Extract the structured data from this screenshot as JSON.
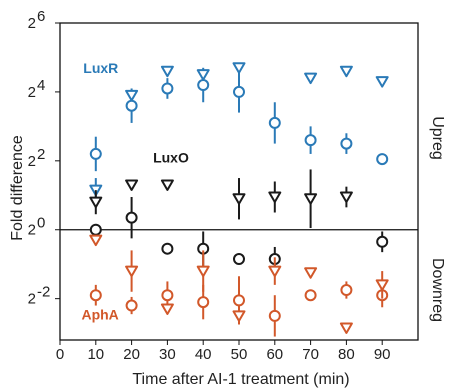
{
  "chart_data": {
    "type": "scatter",
    "xlabel": "Time after AI-1 treatment (min)",
    "ylabel": "Fold difference",
    "xlim": [
      0,
      100
    ],
    "ylim": [
      -3.2,
      6
    ],
    "log_base": 2,
    "x_ticks": [
      "0",
      "10",
      "20",
      "30",
      "40",
      "50",
      "60",
      "70",
      "80",
      "90"
    ],
    "y_tick_values": [
      6,
      4,
      2,
      0,
      -2
    ],
    "y_tick_base": "2",
    "y_tick_exponents": [
      "6",
      "4",
      "2",
      "0",
      "-2"
    ],
    "reference_line": 0,
    "region_labels": {
      "upper": "Upreg",
      "lower": "Downreg"
    },
    "series": [
      {
        "name": "LuxR",
        "color": "#2a7ab7",
        "circles": [
          [
            10,
            2.2,
            0.5
          ],
          [
            20,
            3.6,
            0.5
          ],
          [
            30,
            4.1,
            0.3
          ],
          [
            40,
            4.2,
            0.5
          ],
          [
            50,
            4.0,
            0.6
          ],
          [
            60,
            3.1,
            0.6
          ],
          [
            70,
            2.6,
            0.4
          ],
          [
            80,
            2.5,
            0.3
          ],
          [
            90,
            2.05,
            0
          ]
        ],
        "triangles": [
          [
            10,
            1.15,
            0.35
          ],
          [
            20,
            3.9,
            0
          ],
          [
            30,
            4.6,
            0
          ],
          [
            40,
            4.5,
            0
          ],
          [
            50,
            4.7,
            0
          ],
          [
            70,
            4.4,
            0
          ],
          [
            80,
            4.6,
            0
          ],
          [
            90,
            4.3,
            0
          ]
        ]
      },
      {
        "name": "LuxO",
        "color": "#1a1a1a",
        "circles": [
          [
            10,
            0,
            0
          ],
          [
            20,
            0.35,
            0.6
          ],
          [
            30,
            -0.55,
            0
          ],
          [
            40,
            -0.55,
            0.5
          ],
          [
            50,
            -0.85,
            0
          ],
          [
            60,
            -0.85,
            0.35
          ],
          [
            90,
            -0.35,
            0.3
          ]
        ],
        "triangles": [
          [
            10,
            0.8,
            0.35
          ],
          [
            20,
            1.3,
            0
          ],
          [
            30,
            1.3,
            0
          ],
          [
            50,
            0.9,
            0.6
          ],
          [
            60,
            0.95,
            0.45
          ],
          [
            70,
            0.9,
            0.85
          ],
          [
            80,
            0.95,
            0.3
          ]
        ]
      },
      {
        "name": "AphA",
        "color": "#d2582a",
        "circles": [
          [
            10,
            -1.9,
            0.3
          ],
          [
            20,
            -2.2,
            0.25
          ],
          [
            30,
            -1.9,
            0.4
          ],
          [
            40,
            -2.1,
            0.5
          ],
          [
            50,
            -2.05,
            0.7
          ],
          [
            60,
            -2.5,
            0.6
          ],
          [
            70,
            -1.9,
            0
          ],
          [
            80,
            -1.75,
            0.25
          ],
          [
            90,
            -1.9,
            0.35
          ]
        ],
        "triangles": [
          [
            10,
            -0.3,
            0
          ],
          [
            20,
            -1.2,
            0.6
          ],
          [
            30,
            -2.3,
            0
          ],
          [
            40,
            -1.2,
            0.6
          ],
          [
            50,
            -2.5,
            0
          ],
          [
            60,
            -1.2,
            0.4
          ],
          [
            70,
            -1.25,
            0
          ],
          [
            80,
            -2.85,
            0
          ],
          [
            90,
            -1.6,
            0.4
          ]
        ]
      }
    ],
    "annotations": [
      {
        "text": "LuxR",
        "x": 6.5,
        "y": 4.55,
        "color": "#2a7ab7"
      },
      {
        "text": "LuxO",
        "x": 26,
        "y": 1.95,
        "color": "#1a1a1a"
      },
      {
        "text": "AphA",
        "x": 6,
        "y": -2.6,
        "color": "#d2582a"
      }
    ]
  }
}
